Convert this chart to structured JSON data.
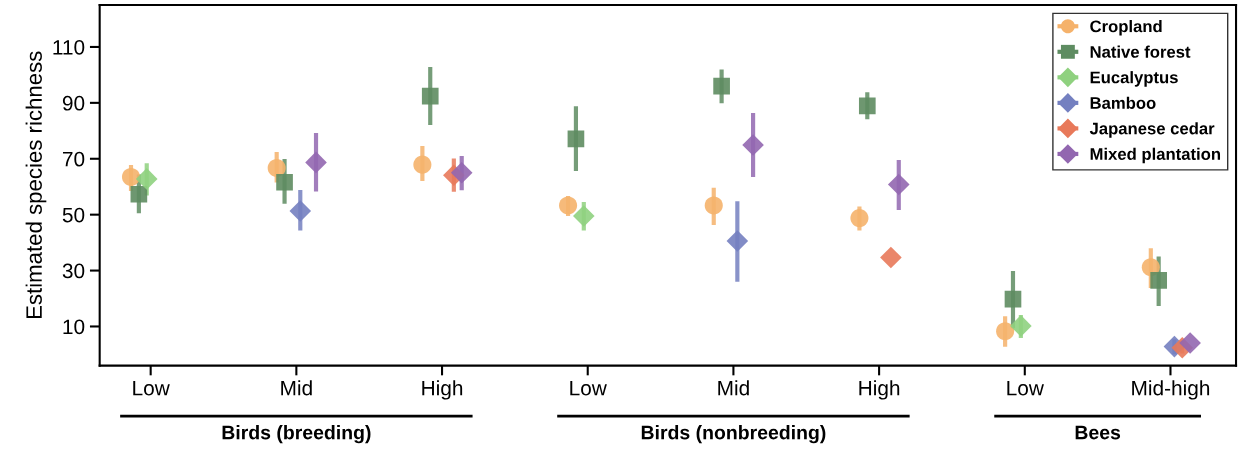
{
  "chart_data": {
    "type": "scatter",
    "ylabel": "Estimated species richness",
    "categories": [
      "Low",
      "Mid",
      "High",
      "Low",
      "Mid",
      "High",
      "Low",
      "Mid-high"
    ],
    "ylim": [
      -4,
      125
    ],
    "yticks": [
      10,
      30,
      50,
      70,
      90,
      110
    ],
    "grid": false,
    "legend": "top right",
    "annotations": [
      "Birds (breeding)",
      "Birds (nonbreeding)",
      "Bees"
    ],
    "series": [
      {
        "name": "Cropland",
        "color": "#f5b26b",
        "marker": "circle",
        "values": [
          63.5,
          66.7,
          67.9,
          53.3,
          53.3,
          48.8,
          8.3,
          31.2
        ],
        "errors": [
          [
            58.5,
            67.8
          ],
          [
            61.5,
            72.4
          ],
          [
            62.0,
            74.6
          ],
          [
            49.5,
            56.7
          ],
          [
            46.3,
            59.6
          ],
          [
            44.3,
            52.9
          ],
          [
            2.7,
            13.7
          ],
          [
            23.8,
            38.0
          ]
        ]
      },
      {
        "name": "Native forest",
        "color": "#5e8c61",
        "marker": "square",
        "values": [
          57.3,
          61.6,
          92.4,
          77.1,
          96.0,
          88.9,
          19.8,
          26.5
        ],
        "errors": [
          [
            50.5,
            64.4
          ],
          [
            53.9,
            69.9
          ],
          [
            82.1,
            102.8
          ],
          [
            65.6,
            88.8
          ],
          [
            89.9,
            101.9
          ],
          [
            84.1,
            93.8
          ],
          [
            9.4,
            29.8
          ],
          [
            17.3,
            35.0
          ]
        ]
      },
      {
        "name": "Eucalyptus",
        "color": "#8fd17f",
        "marker": "diamond",
        "values": [
          62.8,
          null,
          null,
          49.5,
          null,
          null,
          10.2,
          null
        ],
        "errors": [
          [
            56.9,
            68.4
          ],
          null,
          null,
          [
            44.3,
            54.5
          ],
          null,
          null,
          [
            5.9,
            14.1
          ],
          null
        ]
      },
      {
        "name": "Bamboo",
        "color": "#7480c0",
        "marker": "diamond",
        "values": [
          null,
          51.3,
          null,
          null,
          40.6,
          null,
          null,
          2.8
        ],
        "errors": [
          null,
          [
            44.3,
            58.8
          ],
          null,
          null,
          [
            26.0,
            54.8
          ],
          null,
          null,
          [
            0.1,
            5.4
          ]
        ]
      },
      {
        "name": "Japanese cedar",
        "color": "#e8795a",
        "marker": "diamond",
        "values": [
          null,
          null,
          64.1,
          null,
          null,
          34.7,
          null,
          2.4
        ],
        "errors": [
          null,
          null,
          [
            58.2,
            70.1
          ],
          null,
          null,
          null,
          null,
          [
            0.3,
            5.0
          ]
        ]
      },
      {
        "name": "Mixed plantation",
        "color": "#9267b0",
        "marker": "diamond",
        "values": [
          null,
          68.7,
          65.0,
          null,
          74.9,
          60.8,
          null,
          4.1
        ],
        "errors": [
          null,
          [
            58.3,
            79.2
          ],
          [
            58.7,
            71.0
          ],
          null,
          [
            63.5,
            86.4
          ],
          [
            51.7,
            69.6
          ],
          null,
          null
        ]
      }
    ]
  }
}
